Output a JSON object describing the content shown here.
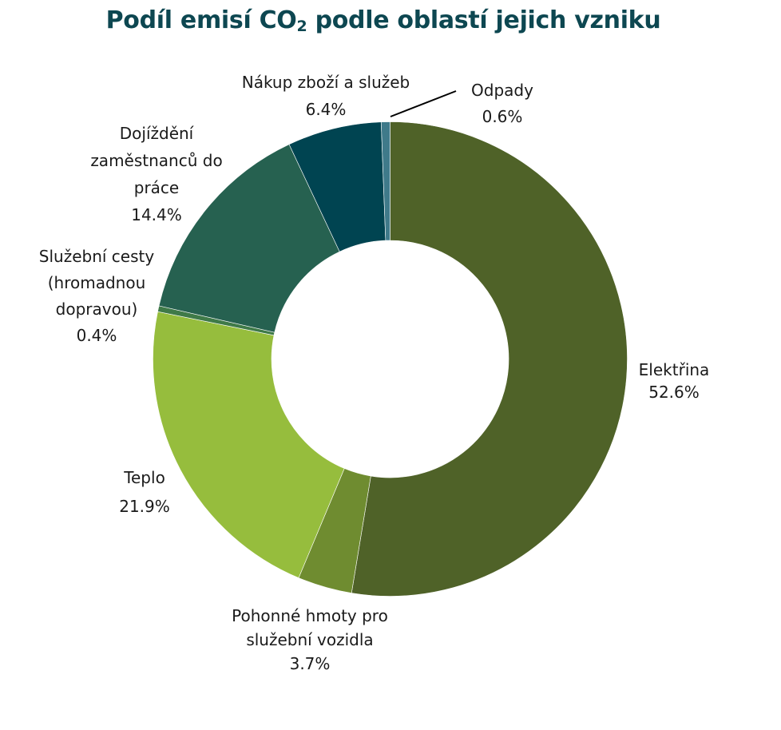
{
  "title": {
    "prefix": "Podíl emisí CO",
    "subscript": "2",
    "suffix": " podle oblastí jejich vzniku"
  },
  "chart_data": {
    "type": "pie",
    "variant": "donut",
    "title": "Podíl emisí CO₂ podle oblastí jejich vzniku",
    "start_angle_deg": 0,
    "direction": "clockwise",
    "unit": "%",
    "categories": [
      "Elektřina",
      "Pohonné hmoty pro služební vozidla",
      "Teplo",
      "Služební cesty (hromadnou dopravou)",
      "Dojíždění zaměstnanců do práce",
      "Nákup zboží a služeb",
      "Odpady"
    ],
    "values": [
      52.6,
      3.7,
      21.9,
      0.4,
      14.4,
      6.4,
      0.6
    ],
    "colors": [
      "#4f6228",
      "#6f8c30",
      "#96bd3d",
      "#3f7a48",
      "#266150",
      "#004451",
      "#3f7a8a"
    ],
    "legend": "none (direct labels)"
  },
  "labels": {
    "elektrina": {
      "lines": [
        "Elektřina"
      ],
      "value": "52.6%"
    },
    "pohonne": {
      "lines": [
        "Pohonné hmoty pro",
        "služební vozidla"
      ],
      "value": "3.7%"
    },
    "teplo": {
      "lines": [
        "Teplo"
      ],
      "value": "21.9%"
    },
    "sluzebni": {
      "lines": [
        "Služební cesty",
        "(hromadnou",
        "dopravou)"
      ],
      "value": "0.4%"
    },
    "dojizdeni": {
      "lines": [
        "Dojíždění",
        "zaměstnanců do",
        "práce"
      ],
      "value": "14.4%"
    },
    "nakup": {
      "lines": [
        "Nákup zboží a služeb"
      ],
      "value": "6.4%"
    },
    "odpady": {
      "lines": [
        "Odpady"
      ],
      "value": "0.6%"
    }
  }
}
